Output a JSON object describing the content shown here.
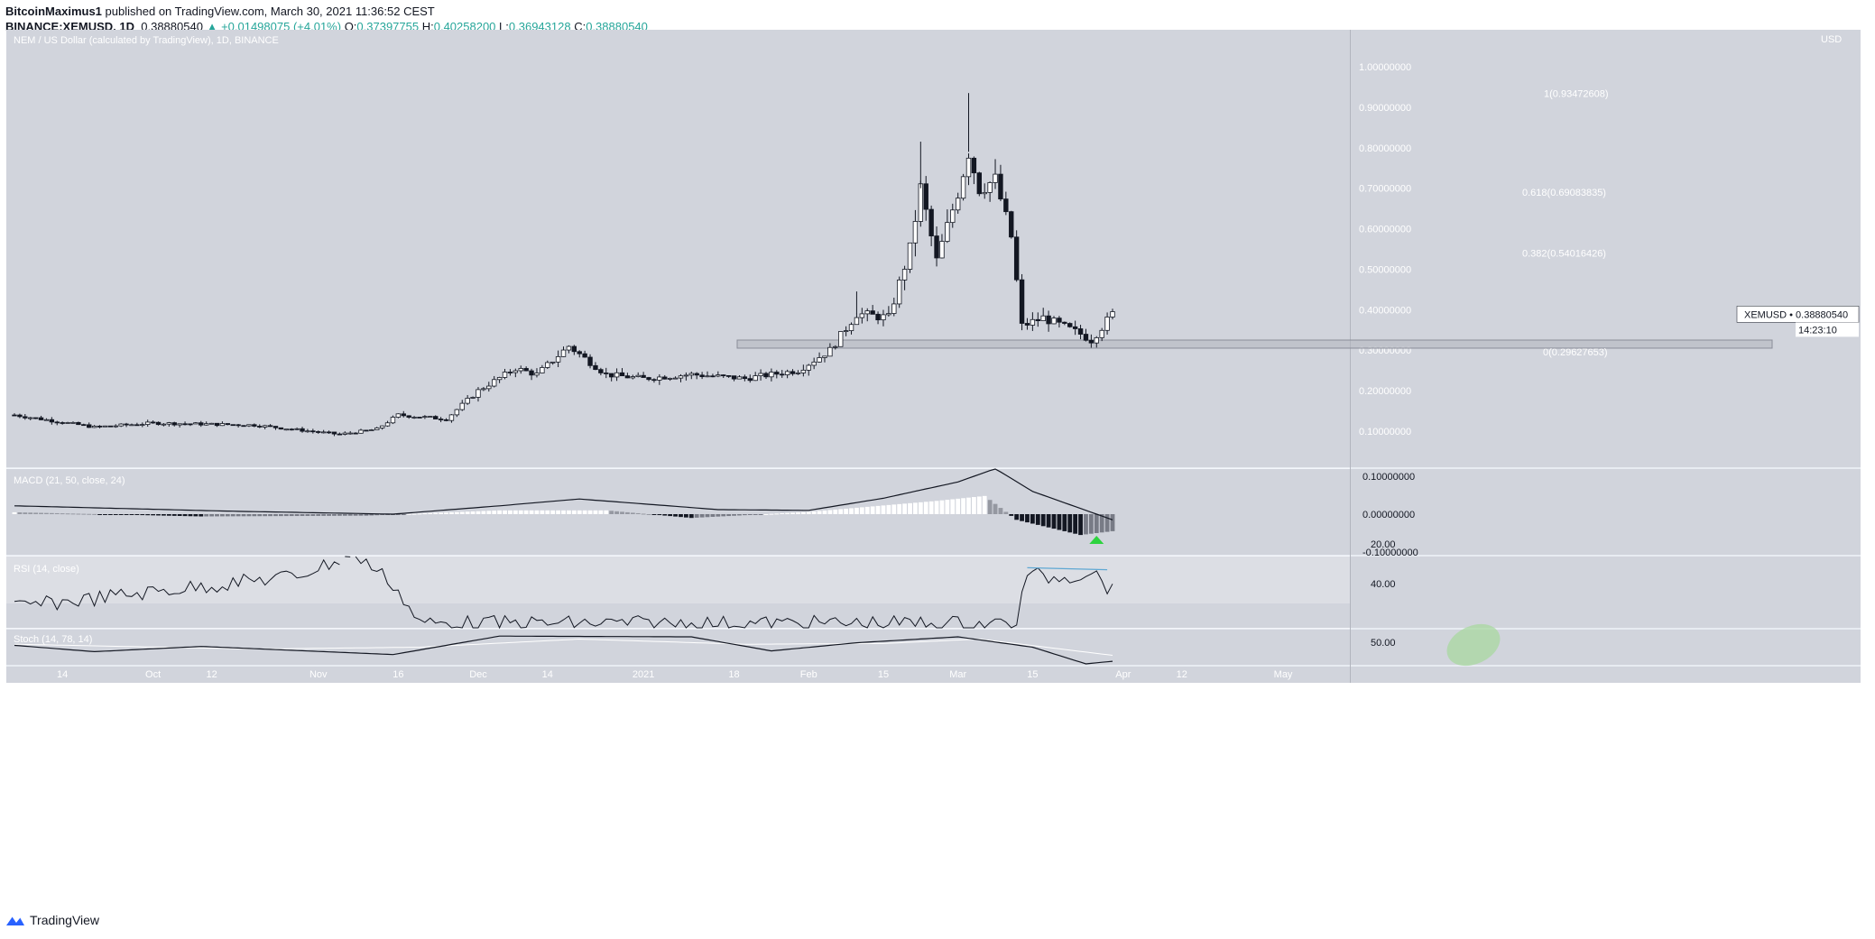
{
  "header": {
    "author": "BitcoinMaximus1",
    "published": "published on TradingView.com, March 30, 2021 11:36:52 CEST",
    "symbol_interval": "BINANCE:XEMUSD, 1D",
    "last": "0.38880540",
    "change": "+0.01498075 (+4.01%)",
    "o_label": "O:",
    "o": "0.37397755",
    "h_label": "H:",
    "h": "0.40258200",
    "l_label": "L:",
    "l": "0.36943128",
    "c_label": "C:",
    "c": "0.38880540"
  },
  "footer": {
    "brand": "TradingView"
  },
  "colors": {
    "bg": "#d1d4dc",
    "panel_bg": "#dcdee4",
    "up": "#ffffff",
    "down": "#131722",
    "accent": "#26a69a",
    "rsi_trend": "#5fa8d3",
    "signal_green": "#2ed33f",
    "stoch_ellipse": "#a8d8a0"
  },
  "chart_data": [
    {
      "type": "candlestick",
      "title": "NEM / US Dollar (calculated by TradingView), 1D, BINANCE",
      "currency": "USD",
      "ylim": [
        0.0,
        1.06
      ],
      "yticks": [
        "1.00000000",
        "0.90000000",
        "0.80000000",
        "0.70000000",
        "0.60000000",
        "0.50000000",
        "0.40000000",
        "0.30000000",
        "0.20000000",
        "0.10000000"
      ],
      "xticks": [
        "14",
        "Oct",
        "12",
        "Nov",
        "16",
        "Dec",
        "14",
        "2021",
        "18",
        "Feb",
        "15",
        "Mar",
        "15",
        "Apr",
        "12",
        "May"
      ],
      "price_label": "XEMUSD • 0.38880540",
      "countdown": "14:23:10",
      "support_zone": [
        0.305,
        0.325
      ],
      "fib_levels": [
        {
          "label": "1(0.93472608)",
          "value": 0.93472608
        },
        {
          "label": "0.618(0.69083835)",
          "value": 0.69083835
        },
        {
          "label": "0.382(0.54016426)",
          "value": 0.54016426
        },
        {
          "label": "0(0.29627653)",
          "value": 0.29627653
        }
      ],
      "anchors": [
        {
          "date": "2020-09-05",
          "close": 0.14
        },
        {
          "date": "2020-09-20",
          "close": 0.11
        },
        {
          "date": "2020-10-01",
          "close": 0.12
        },
        {
          "date": "2020-10-20",
          "close": 0.115
        },
        {
          "date": "2020-11-05",
          "close": 0.092
        },
        {
          "date": "2020-11-12",
          "close": 0.105
        },
        {
          "date": "2020-11-16",
          "close": 0.14
        },
        {
          "date": "2020-11-25",
          "close": 0.13
        },
        {
          "date": "2020-12-01",
          "close": 0.2
        },
        {
          "date": "2020-12-08",
          "close": 0.255
        },
        {
          "date": "2020-12-12",
          "close": 0.24
        },
        {
          "date": "2020-12-18",
          "close": 0.31
        },
        {
          "date": "2020-12-25",
          "close": 0.24
        },
        {
          "date": "2021-01-01",
          "close": 0.23
        },
        {
          "date": "2021-01-10",
          "close": 0.24
        },
        {
          "date": "2021-01-20",
          "close": 0.23
        },
        {
          "date": "2021-01-30",
          "close": 0.25
        },
        {
          "date": "2021-02-05",
          "close": 0.3
        },
        {
          "date": "2021-02-10",
          "close": 0.39
        },
        {
          "date": "2021-02-16",
          "close": 0.38
        },
        {
          "date": "2021-02-20",
          "close": 0.55
        },
        {
          "date": "2021-02-22",
          "close": 0.7
        },
        {
          "date": "2021-02-25",
          "close": 0.52
        },
        {
          "date": "2021-03-01",
          "close": 0.69
        },
        {
          "date": "2021-03-03",
          "close": 0.79
        },
        {
          "date": "2021-03-05",
          "close": 0.7
        },
        {
          "date": "2021-03-08",
          "close": 0.72
        },
        {
          "date": "2021-03-11",
          "close": 0.58
        },
        {
          "date": "2021-03-13",
          "close": 0.36
        },
        {
          "date": "2021-03-17",
          "close": 0.38
        },
        {
          "date": "2021-03-24",
          "close": 0.34
        },
        {
          "date": "2021-03-26",
          "close": 0.325
        },
        {
          "date": "2021-03-30",
          "close": 0.389
        }
      ]
    },
    {
      "type": "line",
      "title": "MACD (21, 50, close, 24)",
      "yticks": [
        "0.10000000",
        "0.00000000",
        "-0.10000000"
      ],
      "macd_anchors": [
        {
          "date": "2020-09-05",
          "value": 0.022
        },
        {
          "date": "2020-10-15",
          "value": 0.008
        },
        {
          "date": "2020-11-15",
          "value": 0.0
        },
        {
          "date": "2020-12-05",
          "value": 0.022
        },
        {
          "date": "2020-12-20",
          "value": 0.04
        },
        {
          "date": "2021-01-15",
          "value": 0.012
        },
        {
          "date": "2021-02-01",
          "value": 0.01
        },
        {
          "date": "2021-02-15",
          "value": 0.042
        },
        {
          "date": "2021-03-01",
          "value": 0.085
        },
        {
          "date": "2021-03-08",
          "value": 0.12
        },
        {
          "date": "2021-03-15",
          "value": 0.06
        },
        {
          "date": "2021-03-30",
          "value": -0.015
        }
      ],
      "hist_anchors": [
        {
          "date": "2020-09-05",
          "value": 0.005
        },
        {
          "date": "2020-10-10",
          "value": -0.006
        },
        {
          "date": "2020-11-10",
          "value": -0.004
        },
        {
          "date": "2020-12-05",
          "value": 0.01
        },
        {
          "date": "2020-12-25",
          "value": 0.01
        },
        {
          "date": "2021-01-10",
          "value": -0.01
        },
        {
          "date": "2021-02-01",
          "value": 0.006
        },
        {
          "date": "2021-02-25",
          "value": 0.035
        },
        {
          "date": "2021-03-06",
          "value": 0.048
        },
        {
          "date": "2021-03-12",
          "value": -0.015
        },
        {
          "date": "2021-03-24",
          "value": -0.055
        },
        {
          "date": "2021-03-30",
          "value": -0.045
        }
      ]
    },
    {
      "type": "line",
      "title": "RSI (14, close)",
      "yticks": [
        "40.00",
        "20.00"
      ],
      "anchors": [
        {
          "date": "2020-09-05",
          "value": 52
        },
        {
          "date": "2020-10-28",
          "value": 36
        },
        {
          "date": "2020-11-08",
          "value": 25
        },
        {
          "date": "2020-11-15",
          "value": 40
        },
        {
          "date": "2020-11-20",
          "value": 60
        },
        {
          "date": "2021-03-12",
          "value": 60
        },
        {
          "date": "2021-03-14",
          "value": 34
        },
        {
          "date": "2021-03-17",
          "value": 37
        },
        {
          "date": "2021-03-23",
          "value": 36
        },
        {
          "date": "2021-03-26",
          "value": 33
        },
        {
          "date": "2021-03-30",
          "value": 44
        }
      ]
    },
    {
      "type": "line",
      "title": "Stoch (14, 78, 14)",
      "yticks": [
        "50.00"
      ],
      "k_anchors": [
        {
          "date": "2020-09-05",
          "value": 55
        },
        {
          "date": "2020-09-20",
          "value": 38
        },
        {
          "date": "2020-10-10",
          "value": 52
        },
        {
          "date": "2020-11-15",
          "value": 30
        },
        {
          "date": "2020-12-05",
          "value": 80
        },
        {
          "date": "2021-01-10",
          "value": 78
        },
        {
          "date": "2021-01-25",
          "value": 40
        },
        {
          "date": "2021-02-10",
          "value": 62
        },
        {
          "date": "2021-03-01",
          "value": 78
        },
        {
          "date": "2021-03-15",
          "value": 50
        },
        {
          "date": "2021-03-25",
          "value": 5
        },
        {
          "date": "2021-03-30",
          "value": 12
        }
      ],
      "d_anchors": [
        {
          "date": "2020-09-05",
          "value": 58
        },
        {
          "date": "2020-10-20",
          "value": 45
        },
        {
          "date": "2020-11-20",
          "value": 50
        },
        {
          "date": "2020-12-20",
          "value": 72
        },
        {
          "date": "2021-01-20",
          "value": 58
        },
        {
          "date": "2021-02-15",
          "value": 60
        },
        {
          "date": "2021-03-05",
          "value": 72
        },
        {
          "date": "2021-03-30",
          "value": 28
        }
      ]
    }
  ]
}
